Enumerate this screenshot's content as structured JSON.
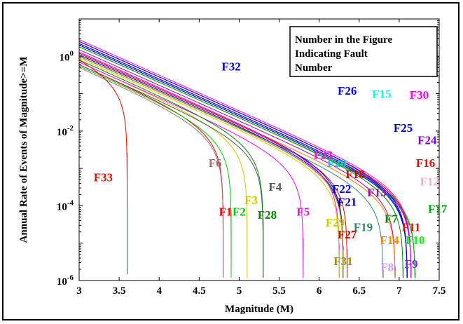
{
  "chart_data": {
    "type": "line",
    "xlabel": "Magnitude (M)",
    "ylabel": "Annual Rate of Events of Magnitude>=M",
    "xlim": [
      3,
      7.5
    ],
    "ylim": [
      1e-06,
      10
    ],
    "y_scale": "log",
    "x_ticks": [
      "3",
      "3.5",
      "4",
      "4.5",
      "5",
      "5.5",
      "6",
      "6.5",
      "7",
      "7.5"
    ],
    "y_ticks": [
      {
        "base": "10",
        "exp": "0",
        "value": 1
      },
      {
        "base": "10",
        "exp": "-2",
        "value": 0.01
      },
      {
        "base": "10",
        "exp": "-4",
        "value": 0.0001
      },
      {
        "base": "10",
        "exp": "-6",
        "value": 1e-06
      }
    ],
    "annotation": [
      "Number in the Figure",
      "Indicating Fault",
      "Number"
    ],
    "series": [
      {
        "name": "F1",
        "color": "#ff0000",
        "y0": 0.6,
        "mmax": 4.8,
        "label_x": 4.83,
        "label_y": 5.5e-05
      },
      {
        "name": "F2",
        "color": "#00cc00",
        "y0": 0.55,
        "mmax": 4.9,
        "label_x": 5.0,
        "label_y": 5.5e-05
      },
      {
        "name": "F3",
        "color": "#cccc00",
        "y0": 0.7,
        "mmax": 5.1,
        "label_x": 5.15,
        "label_y": 0.00011
      },
      {
        "name": "F4",
        "color": "#555555",
        "y0": 0.6,
        "mmax": 5.3,
        "label_x": 5.45,
        "label_y": 0.00025
      },
      {
        "name": "F5",
        "color": "#ff00ff",
        "y0": 0.7,
        "mmax": 5.8,
        "label_x": 5.8,
        "label_y": 5.5e-05
      },
      {
        "name": "F6",
        "color": "#a07070",
        "y0": 0.5,
        "mmax": 4.8,
        "label_x": 4.7,
        "label_y": 0.0011
      },
      {
        "name": "F7",
        "color": "#008800",
        "y0": 1.8,
        "mmax": 7.05,
        "label_x": 6.9,
        "label_y": 3.5e-05
      },
      {
        "name": "F8",
        "color": "#cc99ff",
        "y0": 1.2,
        "mmax": 6.95,
        "label_x": 6.85,
        "label_y": 1.8e-06
      },
      {
        "name": "F9",
        "color": "#6633cc",
        "y0": 2.0,
        "mmax": 7.2,
        "label_x": 7.15,
        "label_y": 2.2e-06
      },
      {
        "name": "F10",
        "color": "#00ff00",
        "y0": 2.0,
        "mmax": 7.2,
        "label_x": 7.2,
        "label_y": 9.5e-06
      },
      {
        "name": "F11",
        "color": "#ff0000",
        "y0": 2.5,
        "mmax": 7.15,
        "label_x": 7.15,
        "label_y": 2.1e-05
      },
      {
        "name": "F12",
        "color": "#ffaacc",
        "y0": 2.0,
        "mmax": 7.15,
        "label_x": 7.38,
        "label_y": 0.00035
      },
      {
        "name": "F13",
        "color": "#aa00aa",
        "y0": 1.5,
        "mmax": 6.95,
        "label_x": 6.72,
        "label_y": 0.00018
      },
      {
        "name": "F14",
        "color": "#ff8800",
        "y0": 1.2,
        "mmax": 6.95,
        "label_x": 6.88,
        "label_y": 9.5e-06
      },
      {
        "name": "F15",
        "color": "#00ffff",
        "y0": 2.2,
        "mmax": 7.1,
        "label_x": 6.78,
        "label_y": 0.078
      },
      {
        "name": "F16",
        "color": "#ff0000",
        "y0": 2.5,
        "mmax": 7.15,
        "label_x": 7.33,
        "label_y": 0.0011
      },
      {
        "name": "F17",
        "color": "#00aa00",
        "y0": 1.8,
        "mmax": 7.2,
        "label_x": 7.48,
        "label_y": 6.5e-05
      },
      {
        "name": "F18",
        "color": "#dd0000",
        "y0": 1.2,
        "mmax": 6.35,
        "label_x": 6.45,
        "label_y": 0.00055
      },
      {
        "name": "F19",
        "color": "#338866",
        "y0": 1.0,
        "mmax": 6.8,
        "label_x": 6.55,
        "label_y": 2.1e-05
      },
      {
        "name": "F20",
        "color": "#00cccc",
        "y0": 1.1,
        "mmax": 6.3,
        "label_x": 6.22,
        "label_y": 0.0011
      },
      {
        "name": "F21",
        "color": "#0000aa",
        "y0": 1.3,
        "mmax": 6.3,
        "label_x": 6.35,
        "label_y": 0.0001
      },
      {
        "name": "F22",
        "color": "#0000ff",
        "y0": 1.1,
        "mmax": 6.3,
        "label_x": 6.28,
        "label_y": 0.00022
      },
      {
        "name": "F23",
        "color": "#ff00ff",
        "y0": 1.3,
        "mmax": 6.25,
        "label_x": 6.05,
        "label_y": 0.0018
      },
      {
        "name": "F24",
        "color": "#8800cc",
        "y0": 2.2,
        "mmax": 7.15,
        "label_x": 7.35,
        "label_y": 0.0045
      },
      {
        "name": "F25",
        "color": "#0000cc",
        "y0": 2.0,
        "mmax": 7.1,
        "label_x": 7.05,
        "label_y": 0.0095
      },
      {
        "name": "F26",
        "color": "#0000ff",
        "y0": 2.5,
        "mmax": 7.1,
        "label_x": 6.35,
        "label_y": 0.095
      },
      {
        "name": "F27",
        "color": "#dd0000",
        "y0": 1.0,
        "mmax": 6.3,
        "label_x": 6.35,
        "label_y": 1.35e-05
      },
      {
        "name": "F28",
        "color": "#008800",
        "y0": 0.8,
        "mmax": 5.3,
        "label_x": 5.35,
        "label_y": 4.5e-05
      },
      {
        "name": "F29",
        "color": "#cccc00",
        "y0": 0.9,
        "mmax": 6.25,
        "label_x": 6.2,
        "label_y": 2.8e-05
      },
      {
        "name": "F30",
        "color": "#ff00ff",
        "y0": 2.8,
        "mmax": 7.15,
        "label_x": 7.25,
        "label_y": 0.072
      },
      {
        "name": "F31",
        "color": "#aa8800",
        "y0": 1.0,
        "mmax": 6.3,
        "label_x": 6.3,
        "label_y": 2.6e-06
      },
      {
        "name": "F32",
        "color": "#0000dd",
        "y0": 2.2,
        "mmax": 7.1,
        "label_x": 4.9,
        "label_y": 0.42
      },
      {
        "name": "F33",
        "color": "#ff0000",
        "y0": 0.8,
        "mmax": 3.6,
        "label_x": 3.3,
        "label_y": 0.00045
      }
    ]
  }
}
